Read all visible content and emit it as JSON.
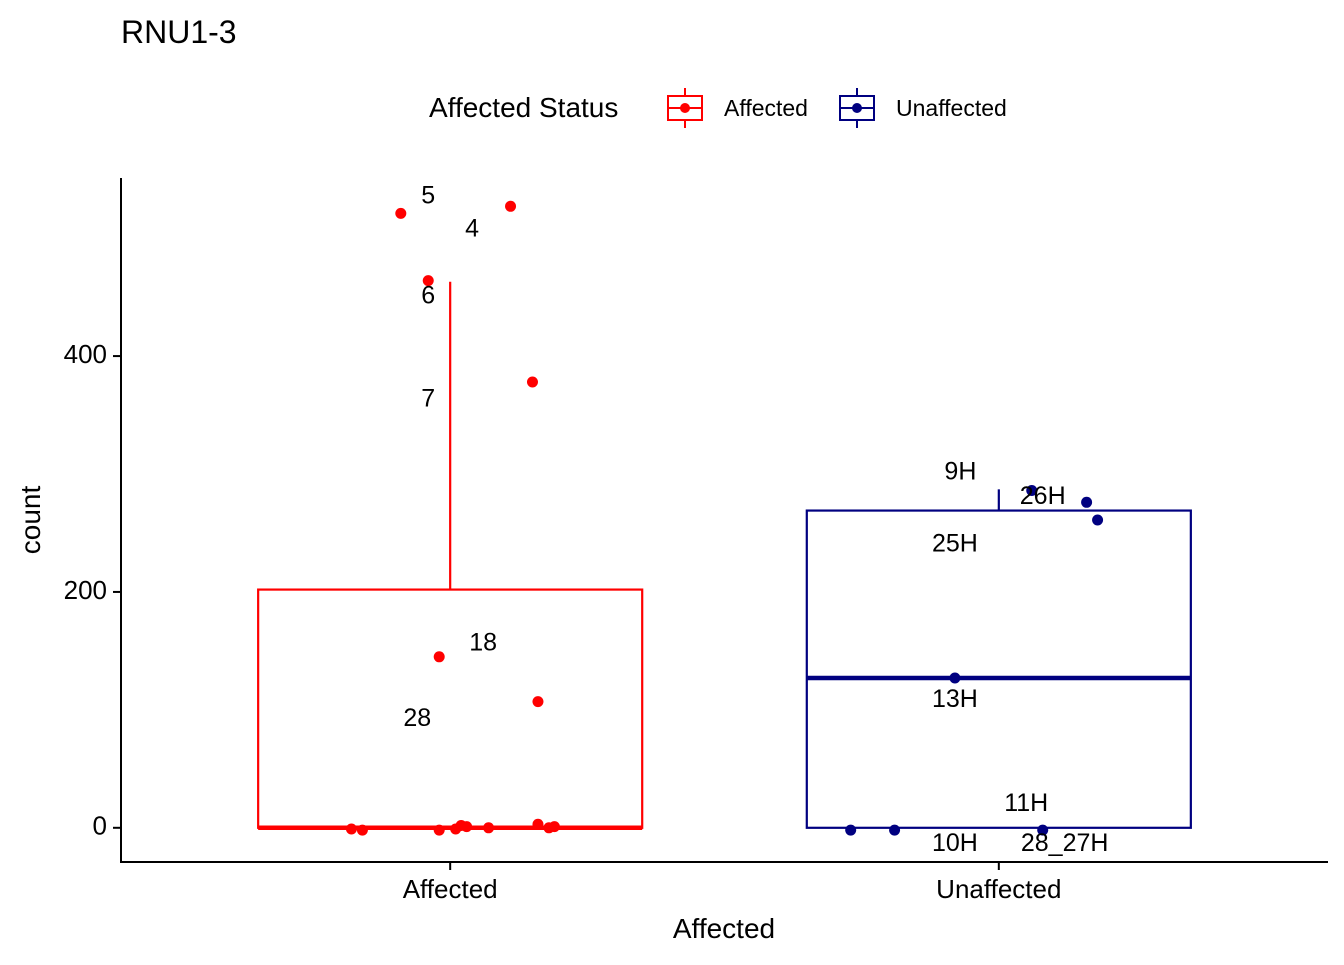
{
  "chart_data": {
    "type": "box",
    "title": "RNU1-3",
    "xlabel": "Affected",
    "ylabel": "count",
    "ylim": [
      -29,
      551
    ],
    "yticks": [
      0,
      200,
      400
    ],
    "categories": [
      "Affected",
      "Unaffected"
    ],
    "legend": {
      "title": "Affected Status",
      "position": "top",
      "entries": [
        {
          "label": "Affected",
          "color": "#ff0000"
        },
        {
          "label": "Unaffected",
          "color": "#000080"
        }
      ]
    },
    "boxes": [
      {
        "category": "Affected",
        "color": "#ff0000",
        "q1": 0,
        "median": 0,
        "q3": 202,
        "whisker_low": 0,
        "whisker_high": 463
      },
      {
        "category": "Unaffected",
        "color": "#000080",
        "q1": 0,
        "median": 127,
        "q3": 269,
        "whisker_low": 0,
        "whisker_high": 287
      }
    ],
    "points": [
      {
        "group": "Affected",
        "x": 0.91,
        "y": 521,
        "label": ""
      },
      {
        "group": "Affected",
        "x": 1.11,
        "y": 527,
        "label": ""
      },
      {
        "group": "Affected",
        "x": 0.96,
        "y": 464,
        "label": ""
      },
      {
        "group": "Affected",
        "x": 1.15,
        "y": 378,
        "label": ""
      },
      {
        "group": "Affected",
        "x": 0.98,
        "y": 145,
        "label": ""
      },
      {
        "group": "Affected",
        "x": 1.16,
        "y": 107,
        "label": ""
      },
      {
        "group": "Affected",
        "x": 0.82,
        "y": -1,
        "label": ""
      },
      {
        "group": "Affected",
        "x": 0.84,
        "y": -2,
        "label": ""
      },
      {
        "group": "Affected",
        "x": 0.98,
        "y": -2,
        "label": ""
      },
      {
        "group": "Affected",
        "x": 1.01,
        "y": -1,
        "label": ""
      },
      {
        "group": "Affected",
        "x": 1.02,
        "y": 2,
        "label": ""
      },
      {
        "group": "Affected",
        "x": 1.03,
        "y": 1,
        "label": ""
      },
      {
        "group": "Affected",
        "x": 1.07,
        "y": 0,
        "label": ""
      },
      {
        "group": "Affected",
        "x": 1.16,
        "y": 3,
        "label": ""
      },
      {
        "group": "Affected",
        "x": 1.18,
        "y": 0,
        "label": ""
      },
      {
        "group": "Affected",
        "x": 1.19,
        "y": 1,
        "label": ""
      },
      {
        "group": "Unaffected",
        "x": 2.06,
        "y": 286,
        "label": ""
      },
      {
        "group": "Unaffected",
        "x": 2.16,
        "y": 276,
        "label": ""
      },
      {
        "group": "Unaffected",
        "x": 2.18,
        "y": 261,
        "label": ""
      },
      {
        "group": "Unaffected",
        "x": 1.92,
        "y": 127,
        "label": ""
      },
      {
        "group": "Unaffected",
        "x": 1.73,
        "y": -2,
        "label": ""
      },
      {
        "group": "Unaffected",
        "x": 1.81,
        "y": -2,
        "label": ""
      },
      {
        "group": "Unaffected",
        "x": 2.08,
        "y": -2,
        "label": ""
      }
    ],
    "annotations": [
      {
        "text": "5",
        "x": 0.96,
        "y": 535
      },
      {
        "text": "4",
        "x": 1.04,
        "y": 507
      },
      {
        "text": "6",
        "x": 0.96,
        "y": 450
      },
      {
        "text": "7",
        "x": 0.96,
        "y": 363
      },
      {
        "text": "18",
        "x": 1.06,
        "y": 156
      },
      {
        "text": "28",
        "x": 0.94,
        "y": 92
      },
      {
        "text": "9H",
        "x": 1.93,
        "y": 301
      },
      {
        "text": "26H",
        "x": 2.08,
        "y": 280
      },
      {
        "text": "25H",
        "x": 1.92,
        "y": 240
      },
      {
        "text": "13H",
        "x": 1.92,
        "y": 108
      },
      {
        "text": "11H",
        "x": 2.05,
        "y": 20
      },
      {
        "text": "10H",
        "x": 1.92,
        "y": -14
      },
      {
        "text": "28_27H",
        "x": 2.12,
        "y": -14
      }
    ]
  }
}
